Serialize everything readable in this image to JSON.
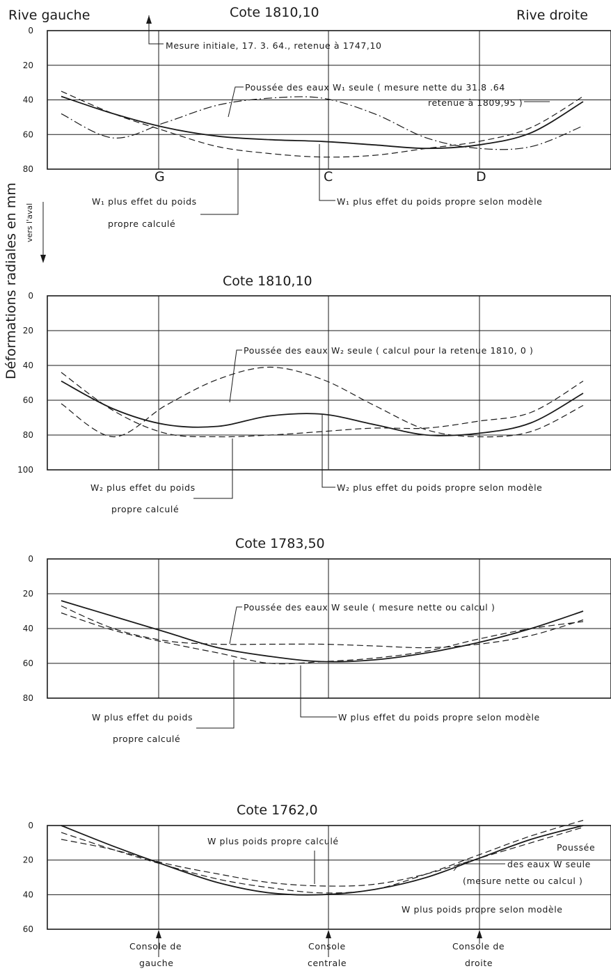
{
  "header": {
    "left_bank": "Rive gauche",
    "right_bank": "Rive droite"
  },
  "ylabel": "Déformations radiales en mm",
  "direction_label": "vers l'aval",
  "colors": {
    "ink": "#1a1a1a",
    "paper": "#ffffff"
  },
  "chart_data": [
    {
      "type": "line",
      "title": "Cote 1810,10",
      "ylim": [
        0,
        80
      ],
      "yticks": [
        0,
        20,
        40,
        60,
        80
      ],
      "y_inverted": true,
      "grid": true,
      "section_labels": [
        "G",
        "C",
        "D"
      ],
      "annotations": [
        "Mesure initiale, 17. 3. 64., retenue à 1747,10",
        "Poussée des eaux W₁ seule ( mesure nette du 31.8 .64",
        "retenue à 1809,95 )",
        "W₁ plus effet du poids",
        "propre calculé",
        "W₁ plus effet du poids propre selon modèle"
      ],
      "series": [
        {
          "style": "dashdot",
          "values": [
            48,
            62,
            53,
            43,
            39,
            39,
            48,
            62,
            68,
            67,
            55
          ]
        },
        {
          "style": "solid",
          "values": [
            38,
            48,
            56,
            61,
            63,
            64,
            66,
            68,
            66,
            59,
            41
          ]
        },
        {
          "style": "dashed",
          "values": [
            35,
            48,
            58,
            67,
            71,
            73,
            72,
            68,
            64,
            56,
            38
          ]
        }
      ]
    },
    {
      "type": "line",
      "title": "Cote 1810,10",
      "ylim": [
        0,
        100
      ],
      "yticks": [
        0,
        20,
        40,
        60,
        80,
        100
      ],
      "y_inverted": true,
      "grid": true,
      "annotations": [
        "Poussée des eaux W₂ seule ( calcul pour la retenue 1810, 0 )",
        "W₂ plus effet du poids",
        "propre calculé",
        "W₂ plus effet du poids propre selon modèle"
      ],
      "series": [
        {
          "style": "dashed",
          "values": [
            62,
            81,
            63,
            48,
            41,
            48,
            63,
            77,
            81,
            78,
            63
          ]
        },
        {
          "style": "solid",
          "values": [
            49,
            65,
            74,
            75,
            69,
            68,
            74,
            80,
            79,
            73,
            56
          ]
        },
        {
          "style": "dashed",
          "values": [
            44,
            66,
            79,
            81,
            80,
            78,
            76,
            76,
            72,
            67,
            49
          ]
        }
      ]
    },
    {
      "type": "line",
      "title": "Cote 1783,50",
      "ylim": [
        0,
        80
      ],
      "yticks": [
        0,
        20,
        40,
        60,
        80
      ],
      "y_inverted": true,
      "grid": true,
      "annotations": [
        "Poussée des eaux W seule ( mesure nette ou calcul )",
        "W plus effet du poids",
        "propre calculé",
        "W plus effet du poids propre selon modèle"
      ],
      "series": [
        {
          "style": "dashed",
          "values": [
            27,
            40,
            47,
            49,
            49,
            49,
            50,
            51,
            49,
            44,
            35
          ]
        },
        {
          "style": "solid",
          "values": [
            24,
            33,
            42,
            51,
            56,
            59,
            58,
            54,
            48,
            40,
            30
          ]
        },
        {
          "style": "dashed",
          "values": [
            31,
            41,
            48,
            54,
            60,
            59,
            57,
            53,
            46,
            40,
            36
          ]
        }
      ]
    },
    {
      "type": "line",
      "title": "Cote 1762,0",
      "ylim": [
        0,
        60
      ],
      "yticks": [
        0,
        20,
        40,
        60
      ],
      "y_inverted": true,
      "grid": true,
      "annotations": [
        "W plus poids propre calculé",
        "Poussée",
        "des eaux W seule",
        "(mesure nette ou calcul )",
        "W plus poids propre selon modèle"
      ],
      "series": [
        {
          "style": "solid",
          "values": [
            0,
            12,
            23,
            33,
            39,
            40,
            37,
            30,
            19,
            8,
            0
          ]
        },
        {
          "style": "dashed",
          "values": [
            4,
            14,
            23,
            31,
            36,
            39,
            37,
            28,
            17,
            6,
            -3
          ]
        },
        {
          "style": "dashed",
          "values": [
            8,
            14,
            22,
            28,
            33,
            35,
            34,
            28,
            19,
            10,
            1
          ]
        }
      ]
    }
  ],
  "consoles": {
    "left": [
      "Console de",
      "gauche"
    ],
    "center": [
      "Console",
      "centrale"
    ],
    "right": [
      "Console de",
      "droite"
    ]
  }
}
